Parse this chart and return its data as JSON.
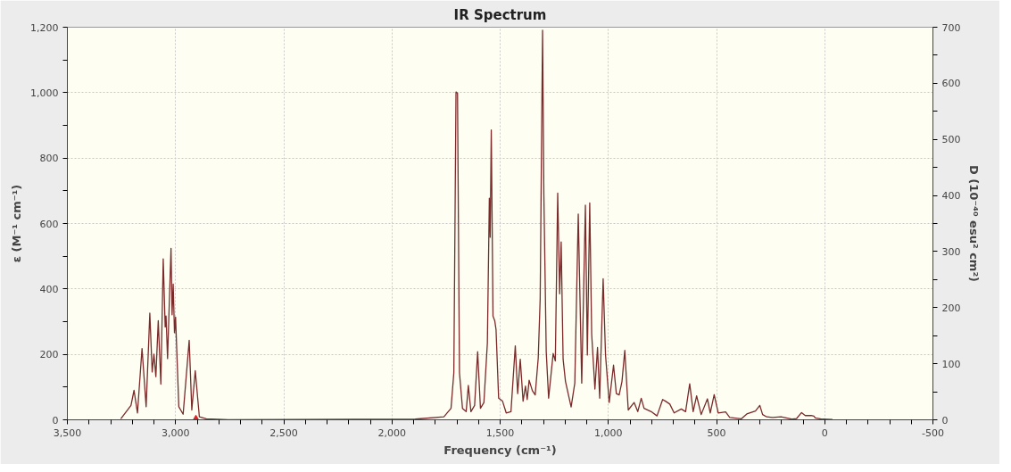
{
  "chart_data": {
    "type": "line",
    "title": "IR Spectrum",
    "xlabel": "Frequency (cm⁻¹)",
    "ylabel": "ε (M⁻¹ cm⁻¹)",
    "y2label": "D (10⁻⁴⁰ esu² cm²)",
    "xlim": [
      3500,
      -500
    ],
    "xticks": [
      {
        "value": 3500,
        "label": "3,500"
      },
      {
        "value": 3400,
        "label": null
      },
      {
        "value": 3300,
        "label": null
      },
      {
        "value": 3200,
        "label": null
      },
      {
        "value": 3100,
        "label": null
      },
      {
        "value": 3000,
        "label": "3,000"
      },
      {
        "value": 2900,
        "label": null
      },
      {
        "value": 2800,
        "label": null
      },
      {
        "value": 2700,
        "label": null
      },
      {
        "value": 2600,
        "label": null
      },
      {
        "value": 2500,
        "label": "2,500"
      },
      {
        "value": 2400,
        "label": null
      },
      {
        "value": 2300,
        "label": null
      },
      {
        "value": 2200,
        "label": null
      },
      {
        "value": 2100,
        "label": null
      },
      {
        "value": 2000,
        "label": "2,000"
      },
      {
        "value": 1900,
        "label": null
      },
      {
        "value": 1800,
        "label": null
      },
      {
        "value": 1700,
        "label": null
      },
      {
        "value": 1600,
        "label": null
      },
      {
        "value": 1500,
        "label": "1,500"
      },
      {
        "value": 1400,
        "label": null
      },
      {
        "value": 1300,
        "label": null
      },
      {
        "value": 1200,
        "label": null
      },
      {
        "value": 1100,
        "label": null
      },
      {
        "value": 1000,
        "label": "1,000"
      },
      {
        "value": 900,
        "label": null
      },
      {
        "value": 800,
        "label": null
      },
      {
        "value": 700,
        "label": null
      },
      {
        "value": 600,
        "label": null
      },
      500,
      {
        "value": 400,
        "label": null
      },
      {
        "value": 300,
        "label": null
      },
      {
        "value": 200,
        "label": null
      },
      {
        "value": 100,
        "label": null
      },
      0,
      {
        "value": -100,
        "label": null
      },
      {
        "value": -200,
        "label": null
      },
      {
        "value": -300,
        "label": null
      },
      {
        "value": -400,
        "label": null
      },
      -500
    ],
    "ylim": [
      0,
      1200
    ],
    "yticks": [
      0,
      {
        "value": 100,
        "label": null
      },
      200,
      {
        "value": 300,
        "label": null
      },
      400,
      {
        "value": 500,
        "label": null
      },
      600,
      {
        "value": 700,
        "label": null
      },
      800,
      {
        "value": 900,
        "label": null
      },
      {
        "value": 1000,
        "label": "1,000"
      },
      {
        "value": 1100,
        "label": null
      },
      {
        "value": 1200,
        "label": "1,200"
      }
    ],
    "y2lim": [
      0,
      700
    ],
    "y2ticks": [
      0,
      {
        "value": 50,
        "label": null
      },
      100,
      {
        "value": 150,
        "label": null
      },
      200,
      {
        "value": 250,
        "label": null
      },
      300,
      {
        "value": 350,
        "label": null
      },
      400,
      {
        "value": 450,
        "label": null
      },
      500,
      {
        "value": 550,
        "label": null
      },
      600,
      {
        "value": 650,
        "label": null
      },
      700
    ],
    "grid": true,
    "line_style": "solid",
    "series": [
      {
        "color": "#7b2a2a",
        "x": [
          3253,
          3206,
          3192,
          3176,
          3155,
          3136,
          3119,
          3108,
          3100,
          3091,
          3080,
          3068,
          3057,
          3048,
          3044,
          3037,
          3021,
          3016,
          3011,
          3005,
          3000,
          2985,
          2965,
          2937,
          2925,
          2909,
          2890,
          2858,
          2751,
          1893,
          1760,
          1727,
          1714,
          1704,
          1697,
          1688,
          1674,
          1657,
          1647,
          1635,
          1618,
          1604,
          1591,
          1575,
          1559,
          1550,
          1546,
          1541,
          1533,
          1525,
          1519,
          1507,
          1489,
          1472,
          1450,
          1430,
          1419,
          1407,
          1394,
          1383,
          1375,
          1366,
          1351,
          1338,
          1324,
          1315,
          1304,
          1298,
          1287,
          1276,
          1255,
          1245,
          1234,
          1225,
          1218,
          1209,
          1198,
          1172,
          1155,
          1139,
          1123,
          1106,
          1097,
          1086,
          1077,
          1062,
          1050,
          1040,
          1024,
          1013,
          996,
          976,
          963,
          950,
          937,
          924,
          908,
          881,
          864,
          848,
          835,
          802,
          775,
          749,
          736,
          716,
          696,
          663,
          643,
          624,
          608,
          592,
          571,
          542,
          529,
          511,
          492,
          458,
          439,
          386,
          360,
          320,
          300,
          287,
          268,
          241,
          202,
          149,
          130,
          107,
          90,
          63,
          50,
          44,
          11,
          -36
        ],
        "values": [
          3,
          44,
          90,
          21,
          218,
          40,
          326,
          146,
          201,
          132,
          303,
          109,
          492,
          284,
          317,
          187,
          524,
          321,
          415,
          266,
          314,
          40,
          17,
          243,
          30,
          150,
          9,
          3,
          0,
          2,
          9,
          35,
          144,
          1002,
          998,
          144,
          35,
          25,
          105,
          25,
          44,
          208,
          35,
          53,
          235,
          677,
          558,
          886,
          317,
          303,
          276,
          66,
          57,
          21,
          25,
          226,
          80,
          185,
          57,
          103,
          62,
          121,
          89,
          76,
          189,
          371,
          1191,
          690,
          208,
          66,
          203,
          180,
          693,
          385,
          544,
          185,
          117,
          39,
          112,
          629,
          112,
          656,
          198,
          663,
          262,
          94,
          221,
          66,
          431,
          198,
          53,
          167,
          80,
          76,
          117,
          212,
          30,
          53,
          25,
          66,
          35,
          25,
          12,
          62,
          57,
          48,
          21,
          33,
          25,
          110,
          25,
          73,
          16,
          64,
          21,
          77,
          21,
          24,
          7,
          3,
          18,
          27,
          44,
          16,
          9,
          7,
          9,
          2,
          4,
          22,
          13,
          13,
          11,
          6,
          2,
          1
        ]
      },
      {
        "type": "scatter",
        "color": "#dd2222",
        "marker": "triangle",
        "x": [
          2906
        ],
        "values": [
          0
        ]
      }
    ]
  }
}
